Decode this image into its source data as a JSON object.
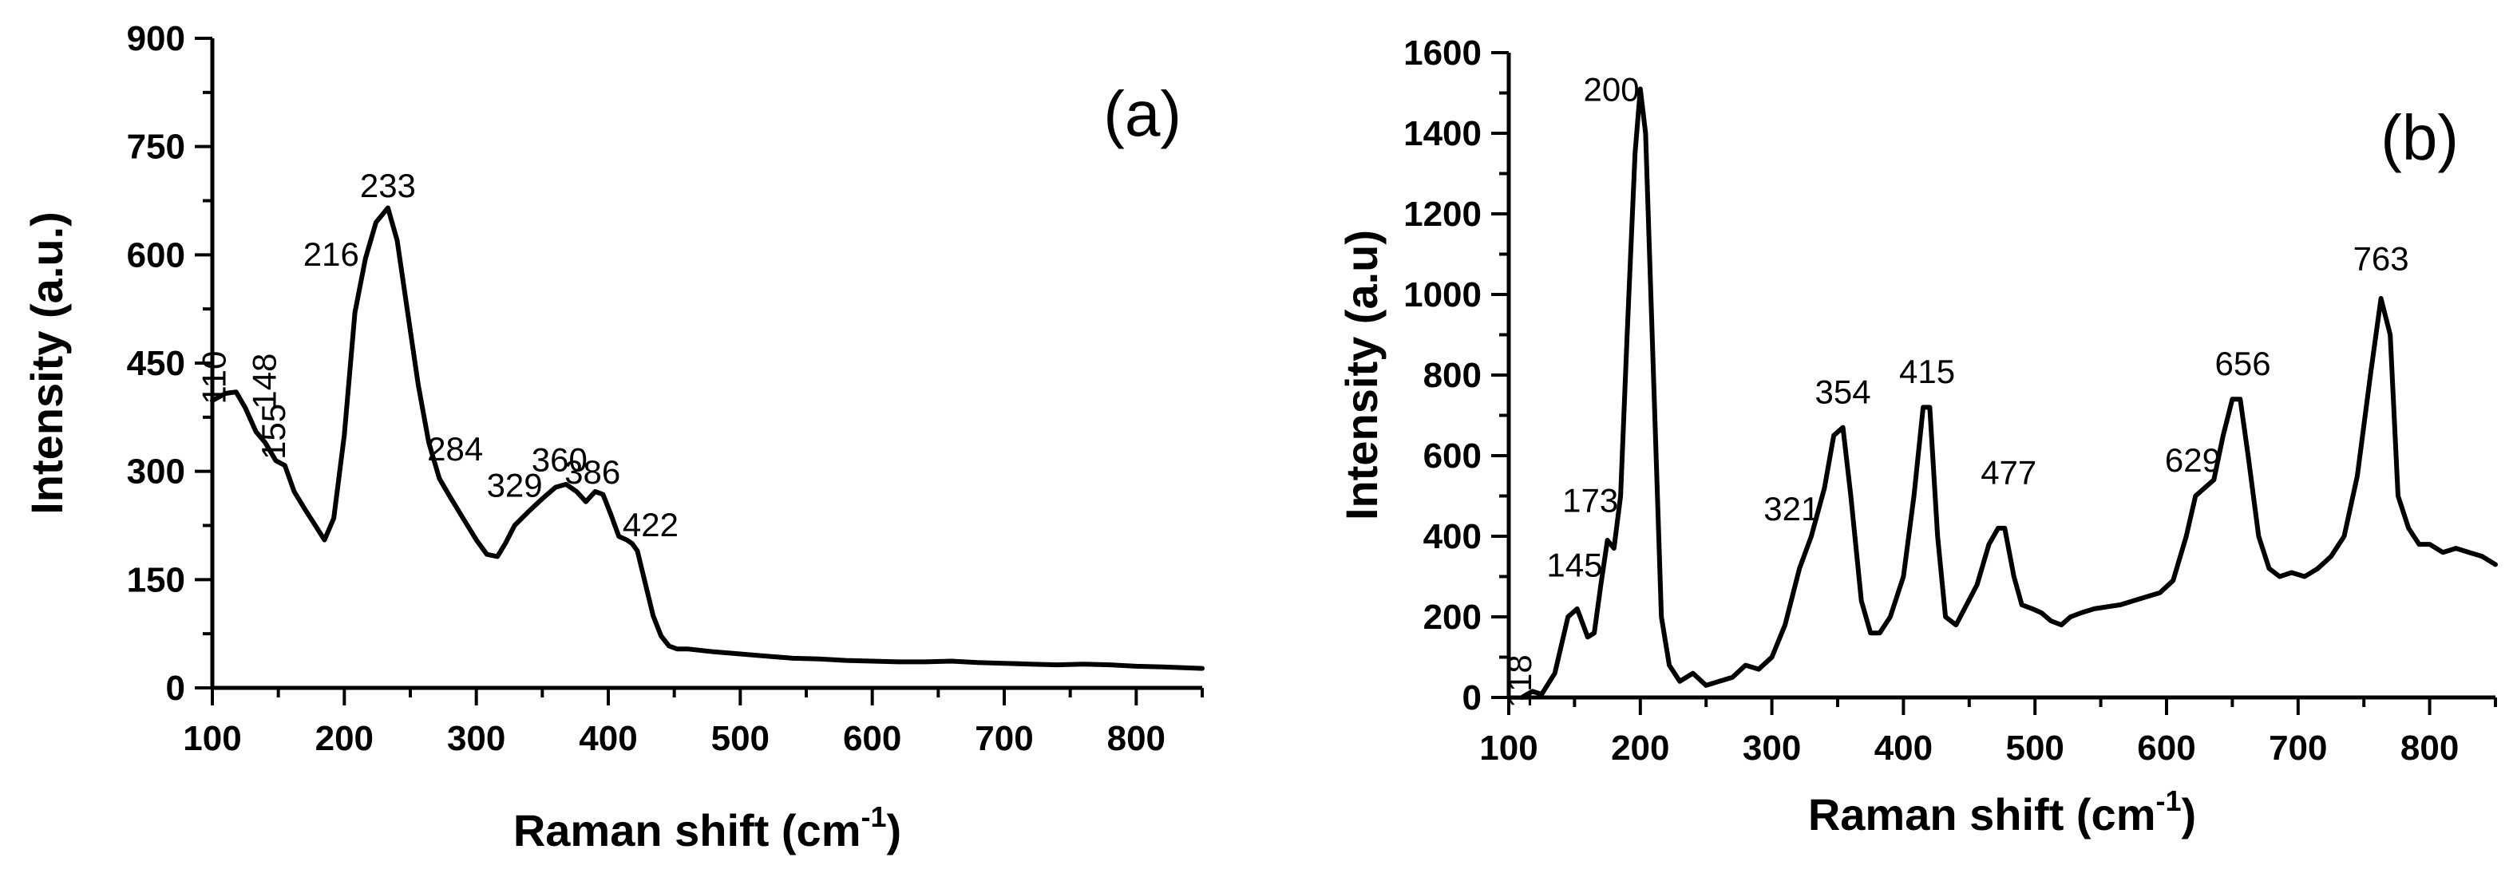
{
  "chart_data": [
    {
      "type": "line",
      "panel_label": "(a)",
      "xlabel": "Raman shift (cm",
      "xlabel_sup": "-1",
      "xlabel_end": ")",
      "ylabel": "Intensity (a.u.)",
      "xlim": [
        100,
        850
      ],
      "ylim": [
        0,
        900
      ],
      "xticks": [
        100,
        200,
        300,
        400,
        500,
        600,
        700,
        800
      ],
      "yticks": [
        0,
        150,
        300,
        450,
        600,
        750,
        900
      ],
      "x": [
        100,
        110,
        118,
        125,
        133,
        140,
        148,
        155,
        162,
        170,
        178,
        185,
        192,
        200,
        208,
        216,
        224,
        233,
        240,
        248,
        256,
        264,
        272,
        280,
        290,
        300,
        308,
        316,
        322,
        329,
        340,
        350,
        360,
        368,
        376,
        383,
        390,
        396,
        402,
        408,
        414,
        418,
        422,
        428,
        434,
        440,
        446,
        452,
        460,
        480,
        500,
        520,
        540,
        560,
        580,
        600,
        620,
        640,
        660,
        680,
        700,
        720,
        740,
        760,
        780,
        800,
        820,
        850
      ],
      "y": [
        398,
        408,
        410,
        388,
        355,
        340,
        315,
        308,
        272,
        248,
        225,
        205,
        235,
        350,
        520,
        595,
        645,
        665,
        620,
        520,
        420,
        340,
        290,
        265,
        235,
        205,
        185,
        182,
        200,
        225,
        245,
        262,
        278,
        282,
        272,
        258,
        272,
        268,
        240,
        210,
        205,
        200,
        190,
        145,
        100,
        72,
        58,
        54,
        54,
        50,
        47,
        44,
        41,
        40,
        38,
        37,
        36,
        36,
        37,
        35,
        34,
        33,
        32,
        33,
        32,
        30,
        29,
        27
      ],
      "peaks": [
        {
          "label": "110",
          "x": 110,
          "y": 430,
          "rot": -90
        },
        {
          "label": "148",
          "x": 148,
          "y": 425,
          "rot": -90
        },
        {
          "label": "155",
          "x": 155,
          "y": 355,
          "rot": -90
        },
        {
          "label": "216",
          "x": 190,
          "y": 585,
          "rot": 0
        },
        {
          "label": "233",
          "x": 233,
          "y": 680,
          "rot": 0
        },
        {
          "label": "284",
          "x": 284,
          "y": 315,
          "rot": 0
        },
        {
          "label": "329",
          "x": 329,
          "y": 265,
          "rot": 0
        },
        {
          "label": "360",
          "x": 363,
          "y": 300,
          "rot": 0
        },
        {
          "label": "386",
          "x": 388,
          "y": 283,
          "rot": 0
        },
        {
          "label": "422",
          "x": 432,
          "y": 210,
          "rot": 0
        }
      ]
    },
    {
      "type": "line",
      "panel_label": "(b)",
      "xlabel": "Raman shift (cm",
      "xlabel_sup": "-1",
      "xlabel_end": ")",
      "ylabel": "Intensity (a.u)",
      "xlim": [
        100,
        850
      ],
      "ylim": [
        0,
        1600
      ],
      "xticks": [
        100,
        200,
        300,
        400,
        500,
        600,
        700,
        800
      ],
      "yticks": [
        0,
        200,
        400,
        600,
        800,
        1000,
        1200,
        1400,
        1600
      ],
      "x": [
        110,
        115,
        118,
        125,
        135,
        145,
        152,
        160,
        165,
        170,
        175,
        180,
        185,
        190,
        196,
        200,
        204,
        210,
        216,
        222,
        230,
        240,
        250,
        260,
        270,
        280,
        290,
        300,
        310,
        321,
        330,
        340,
        347,
        354,
        360,
        368,
        375,
        382,
        390,
        400,
        408,
        415,
        420,
        426,
        432,
        440,
        448,
        456,
        465,
        472,
        477,
        484,
        490,
        498,
        505,
        512,
        520,
        527,
        535,
        545,
        555,
        565,
        575,
        585,
        595,
        605,
        615,
        622,
        629,
        636,
        643,
        650,
        656,
        662,
        670,
        678,
        686,
        695,
        705,
        715,
        725,
        735,
        745,
        755,
        763,
        770,
        776,
        784,
        792,
        800,
        810,
        820,
        830,
        840,
        850
      ],
      "y": [
        0,
        10,
        15,
        8,
        60,
        200,
        220,
        150,
        160,
        280,
        390,
        370,
        500,
        900,
        1350,
        1510,
        1400,
        800,
        200,
        80,
        40,
        60,
        30,
        40,
        50,
        80,
        70,
        100,
        180,
        320,
        400,
        520,
        650,
        670,
        500,
        240,
        160,
        160,
        200,
        300,
        500,
        720,
        720,
        400,
        200,
        180,
        230,
        280,
        380,
        420,
        420,
        300,
        230,
        220,
        210,
        190,
        180,
        200,
        210,
        220,
        225,
        230,
        240,
        250,
        260,
        290,
        400,
        500,
        520,
        540,
        650,
        740,
        740,
        600,
        400,
        320,
        300,
        310,
        300,
        320,
        350,
        400,
        550,
        800,
        990,
        900,
        500,
        420,
        380,
        380,
        360,
        370,
        360,
        350,
        330
      ],
      "peaks": [
        {
          "label": "118",
          "x": 117,
          "y": 40,
          "rot": -90
        },
        {
          "label": "145",
          "x": 150,
          "y": 300,
          "rot": 0
        },
        {
          "label": "173",
          "x": 162,
          "y": 460,
          "rot": 0
        },
        {
          "label": "200",
          "x": 178,
          "y": 1480,
          "rot": 0
        },
        {
          "label": "321",
          "x": 315,
          "y": 440,
          "rot": 0
        },
        {
          "label": "354",
          "x": 354,
          "y": 730,
          "rot": 0
        },
        {
          "label": "415",
          "x": 418,
          "y": 780,
          "rot": 0
        },
        {
          "label": "477",
          "x": 480,
          "y": 530,
          "rot": 0
        },
        {
          "label": "629",
          "x": 620,
          "y": 560,
          "rot": 0
        },
        {
          "label": "656",
          "x": 658,
          "y": 800,
          "rot": 0
        },
        {
          "label": "763",
          "x": 763,
          "y": 1060,
          "rot": 0
        }
      ]
    }
  ]
}
